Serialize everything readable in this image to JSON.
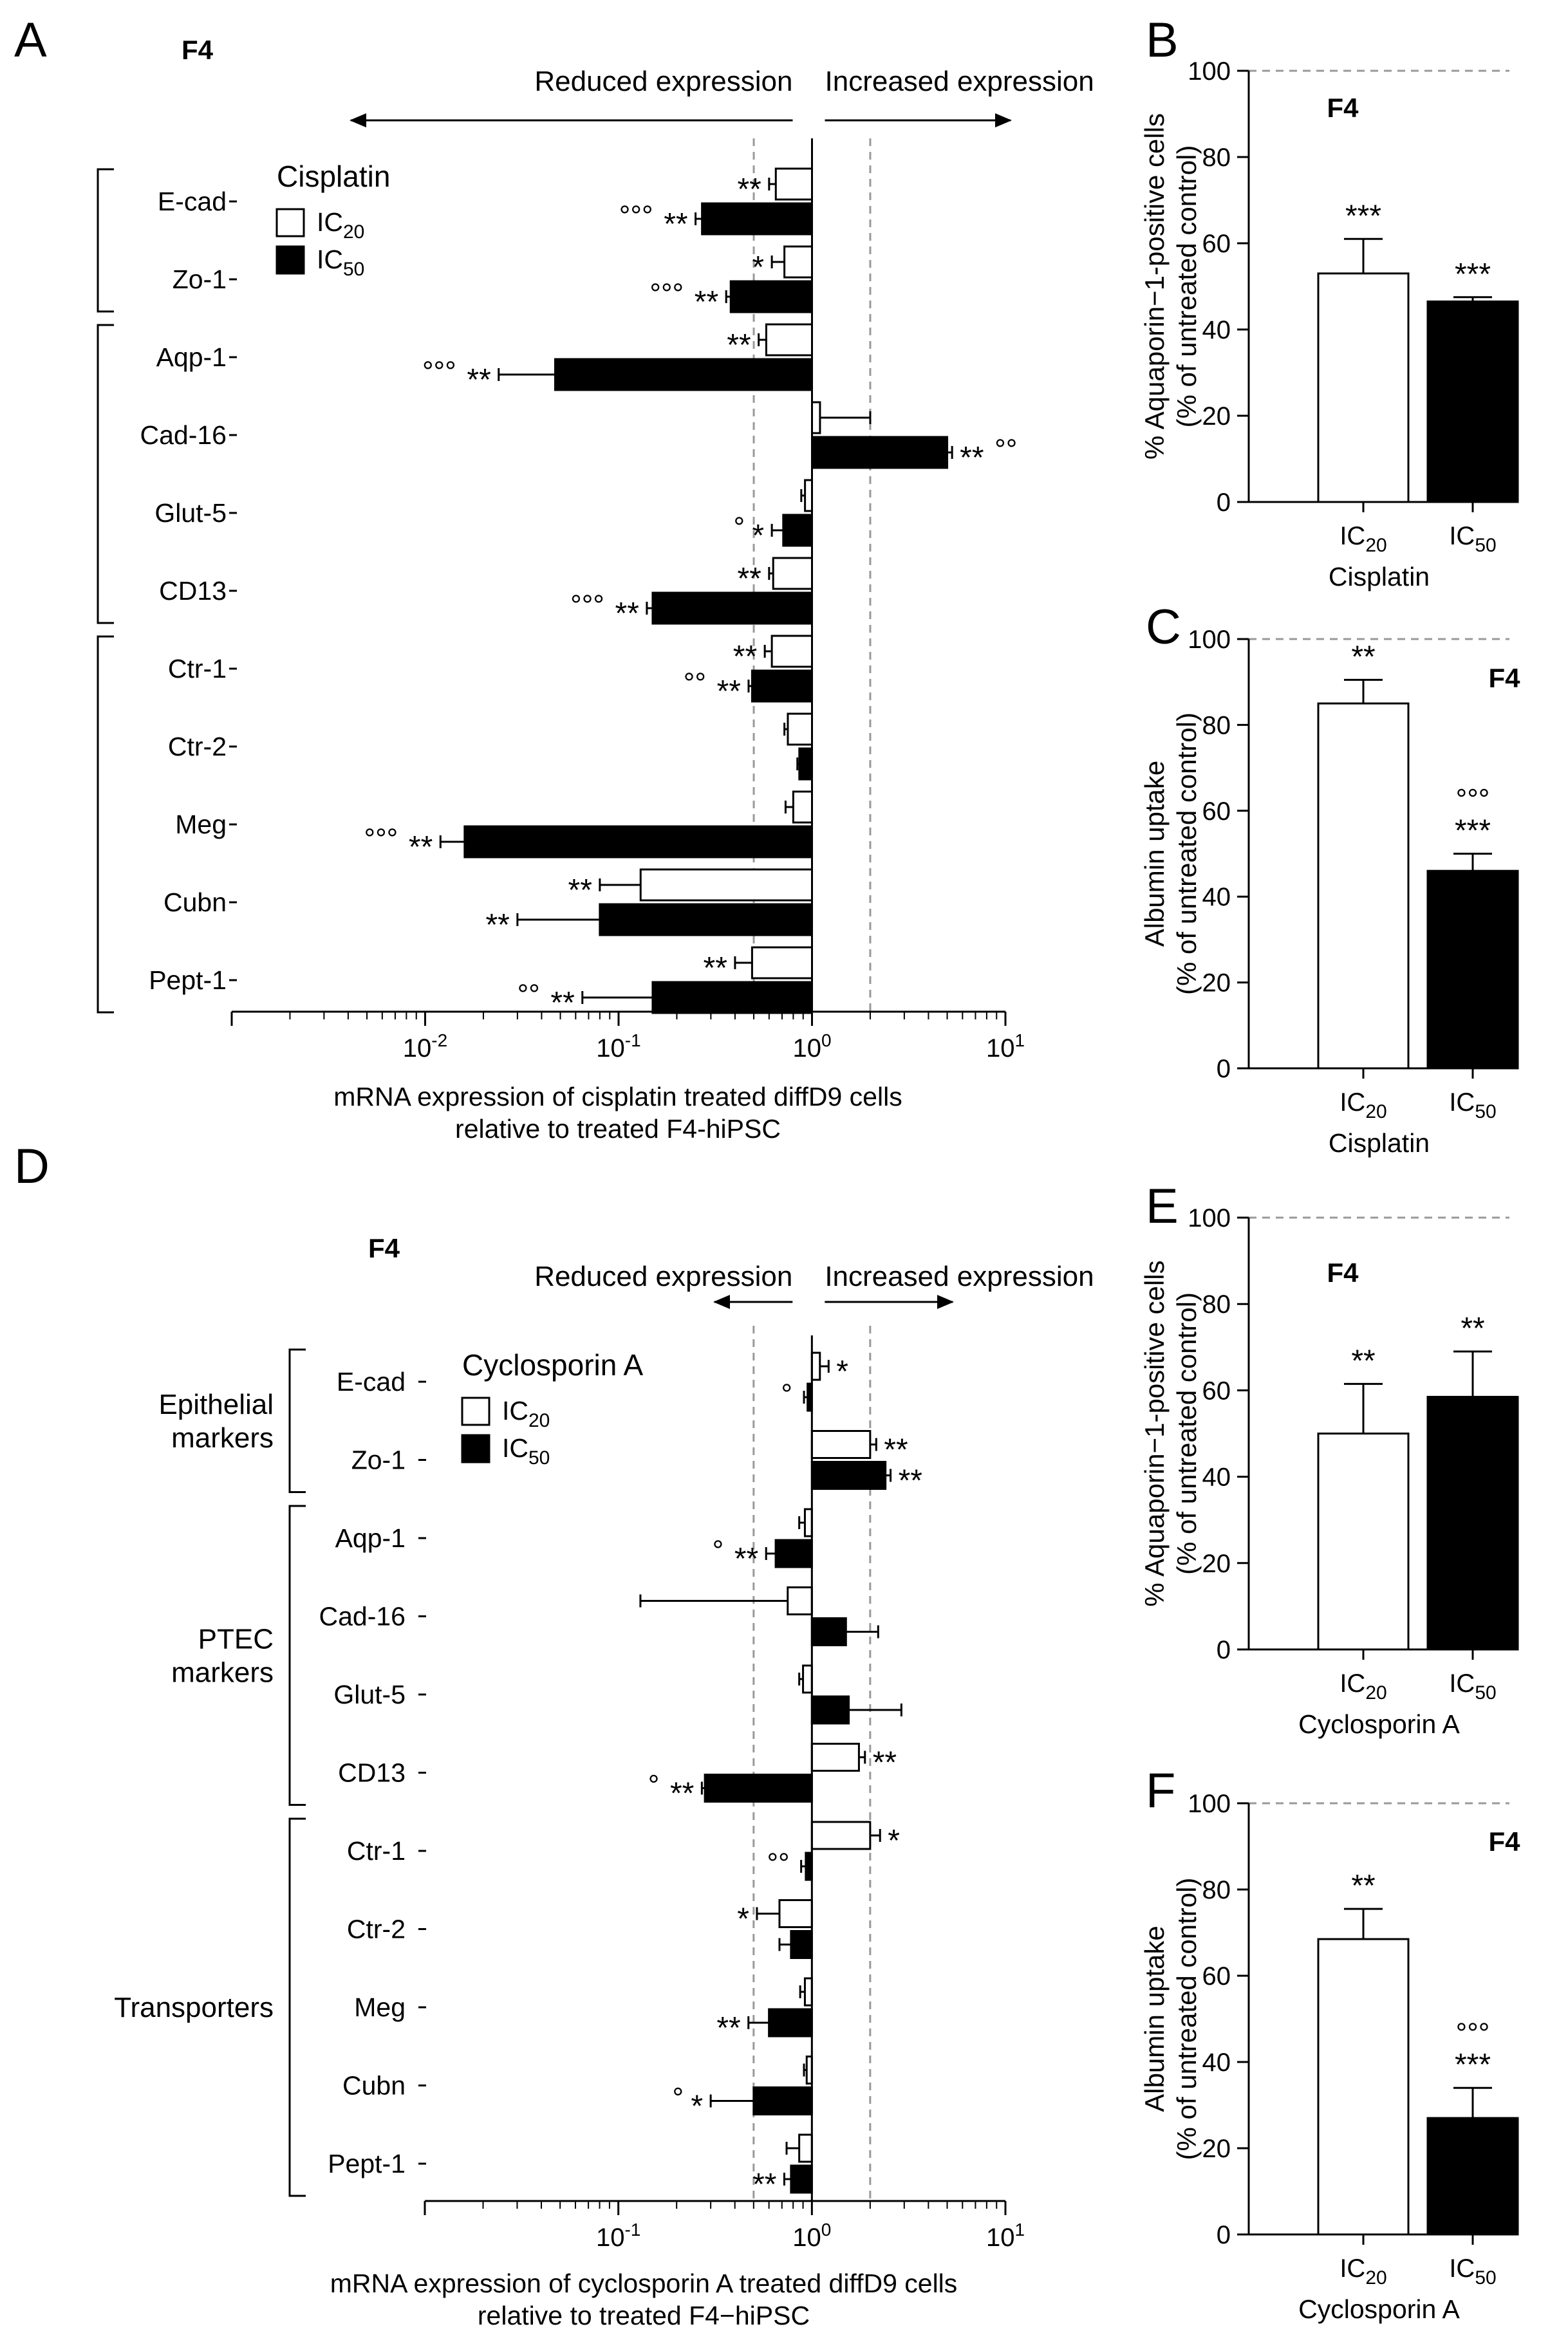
{
  "chart_data": [
    {
      "id": "A",
      "panel_label": "A",
      "type": "bar",
      "orientation": "horizontal",
      "cell_line": "F4",
      "xscale": "log10",
      "xlim": [
        0.001,
        10
      ],
      "xlabel_lines": [
        "mRNA expression of cisplatin treated diffD9 cells",
        "relative to treated F4-hiPSC"
      ],
      "reduced_label": "Reduced expression",
      "increased_label": "Increased expression",
      "reference_lines": [
        0.5,
        2
      ],
      "legend": {
        "title": "Cisplatin",
        "items": [
          "IC20",
          "IC50"
        ]
      },
      "groups": [],
      "categories": [
        "E-cad",
        "Zo-1",
        "Aqp-1",
        "Cad-16",
        "Glut-5",
        "CD13",
        "Ctr-1",
        "Ctr-2",
        "Meg",
        "Cubn",
        "Pept-1"
      ],
      "series": [
        {
          "name": "IC20",
          "fill": "#ffffff",
          "values": [
            0.65,
            0.72,
            0.58,
            1.1,
            0.92,
            0.63,
            0.62,
            0.75,
            0.8,
            0.13,
            0.49
          ],
          "errors": [
            0.6,
            0.62,
            0.53,
            2.0,
            0.88,
            0.6,
            0.57,
            0.72,
            0.73,
            0.08,
            0.4
          ],
          "sig": [
            "**",
            "*",
            "**",
            "",
            "",
            "**",
            "**",
            "",
            "",
            "**",
            "**"
          ],
          "deg": [
            "",
            "",
            "",
            "",
            "",
            "",
            "",
            "",
            "",
            "",
            ""
          ]
        },
        {
          "name": "IC50",
          "fill": "#000000",
          "values": [
            0.27,
            0.38,
            0.047,
            5.0,
            0.71,
            0.15,
            0.49,
            0.86,
            0.016,
            0.08,
            0.15
          ],
          "errors": [
            0.25,
            0.36,
            0.024,
            5.3,
            0.62,
            0.14,
            0.47,
            0.84,
            0.012,
            0.03,
            0.065
          ],
          "sig": [
            "**",
            "**",
            "**",
            "**",
            "*",
            "**",
            "**",
            "",
            "**",
            "**",
            "**"
          ],
          "deg": [
            "°°°",
            "°°°",
            "°°°",
            "°°",
            "°",
            "°°°",
            "°°",
            "",
            "°°°",
            "",
            "°°"
          ]
        }
      ]
    },
    {
      "id": "B",
      "panel_label": "B",
      "type": "bar",
      "cell_line": "F4",
      "categories": [
        "IC20",
        "IC50"
      ],
      "values": [
        53,
        46.5
      ],
      "errors": [
        8,
        1
      ],
      "sig": [
        "***",
        "***"
      ],
      "deg": [
        "",
        ""
      ],
      "fills": [
        "#ffffff",
        "#000000"
      ],
      "ylabel_lines": [
        "% Aquaporin−1-positive cells",
        "(% of untreated control)"
      ],
      "xlabel": "Cisplatin",
      "ylim": [
        0,
        100
      ],
      "yticks": [
        0,
        20,
        40,
        60,
        80,
        100
      ],
      "reference_line": 100
    },
    {
      "id": "C",
      "panel_label": "C",
      "type": "bar",
      "cell_line": "F4",
      "categories": [
        "IC20",
        "IC50"
      ],
      "values": [
        85,
        46
      ],
      "errors": [
        5.5,
        4
      ],
      "sig": [
        "**",
        "***"
      ],
      "deg": [
        "",
        "°°°"
      ],
      "fills": [
        "#ffffff",
        "#000000"
      ],
      "ylabel_lines": [
        "Albumin uptake",
        "(% of untreated control)"
      ],
      "xlabel": "Cisplatin",
      "ylim": [
        0,
        100
      ],
      "yticks": [
        0,
        20,
        40,
        60,
        80,
        100
      ],
      "reference_line": 100
    },
    {
      "id": "D",
      "panel_label": "D",
      "type": "bar",
      "orientation": "horizontal",
      "cell_line": "F4",
      "xscale": "log10",
      "xlim": [
        0.01,
        10
      ],
      "xlabel_lines": [
        "mRNA expression of cyclosporin A treated diffD9 cells",
        "relative to treated F4−hiPSC"
      ],
      "reduced_label": "Reduced expression",
      "increased_label": "Increased expression",
      "reference_lines": [
        0.5,
        2
      ],
      "legend": {
        "title": "Cyclosporin A",
        "items": [
          "IC20",
          "IC50"
        ]
      },
      "groups": [
        {
          "label_lines": [
            "Epithelial",
            "markers"
          ],
          "from": 0,
          "to": 1
        },
        {
          "label_lines": [
            "PTEC",
            "markers"
          ],
          "from": 2,
          "to": 5
        },
        {
          "label_lines": [
            "Transporters"
          ],
          "from": 6,
          "to": 10
        }
      ],
      "categories": [
        "E-cad",
        "Zo-1",
        "Aqp-1",
        "Cad-16",
        "Glut-5",
        "CD13",
        "Ctr-1",
        "Ctr-2",
        "Meg",
        "Cubn",
        "Pept-1"
      ],
      "series": [
        {
          "name": "IC20",
          "fill": "#ffffff",
          "values": [
            1.1,
            2.0,
            0.92,
            0.75,
            0.9,
            1.75,
            2.0,
            0.68,
            0.92,
            0.94,
            0.86
          ],
          "errors": [
            1.22,
            2.15,
            0.86,
            0.13,
            0.86,
            1.88,
            2.25,
            0.52,
            0.87,
            0.91,
            0.74
          ],
          "sig": [
            "*",
            "**",
            "",
            "",
            "",
            "**",
            "*",
            "*",
            "",
            "",
            ""
          ],
          "deg": [
            "",
            "",
            "",
            "",
            "",
            "",
            "",
            "",
            "",
            "",
            ""
          ]
        },
        {
          "name": "IC50",
          "fill": "#000000",
          "values": [
            0.95,
            2.4,
            0.65,
            1.5,
            1.55,
            0.28,
            0.93,
            0.78,
            0.6,
            0.5,
            0.78
          ],
          "errors": [
            0.91,
            2.55,
            0.58,
            2.2,
            2.9,
            0.27,
            0.88,
            0.68,
            0.47,
            0.3,
            0.72
          ],
          "sig": [
            "",
            "**",
            "**",
            "",
            "",
            "**",
            "",
            "",
            "**",
            "*",
            "**"
          ],
          "deg": [
            "°",
            "",
            "°",
            "",
            "",
            "°",
            "°°",
            "",
            "",
            "°",
            ""
          ]
        }
      ]
    },
    {
      "id": "E",
      "panel_label": "E",
      "type": "bar",
      "cell_line": "F4",
      "categories": [
        "IC20",
        "IC50"
      ],
      "values": [
        50,
        58.5
      ],
      "errors": [
        11.5,
        10.5
      ],
      "sig": [
        "**",
        "**"
      ],
      "deg": [
        "",
        ""
      ],
      "fills": [
        "#ffffff",
        "#000000"
      ],
      "ylabel_lines": [
        "% Aquaporin−1-positive cells",
        "(% of untreated control)"
      ],
      "xlabel": "Cyclosporin A",
      "ylim": [
        0,
        100
      ],
      "yticks": [
        0,
        20,
        40,
        60,
        80,
        100
      ],
      "reference_line": 100
    },
    {
      "id": "F",
      "panel_label": "F",
      "type": "bar",
      "cell_line": "F4",
      "categories": [
        "IC20",
        "IC50"
      ],
      "values": [
        68.5,
        27
      ],
      "errors": [
        7,
        7
      ],
      "sig": [
        "**",
        "***"
      ],
      "deg": [
        "",
        "°°°"
      ],
      "fills": [
        "#ffffff",
        "#000000"
      ],
      "ylabel_lines": [
        "Albumin uptake",
        "(% of untreated control)"
      ],
      "xlabel": "Cyclosporin A",
      "ylim": [
        0,
        100
      ],
      "yticks": [
        0,
        20,
        40,
        60,
        80,
        100
      ],
      "reference_line": 100
    }
  ]
}
